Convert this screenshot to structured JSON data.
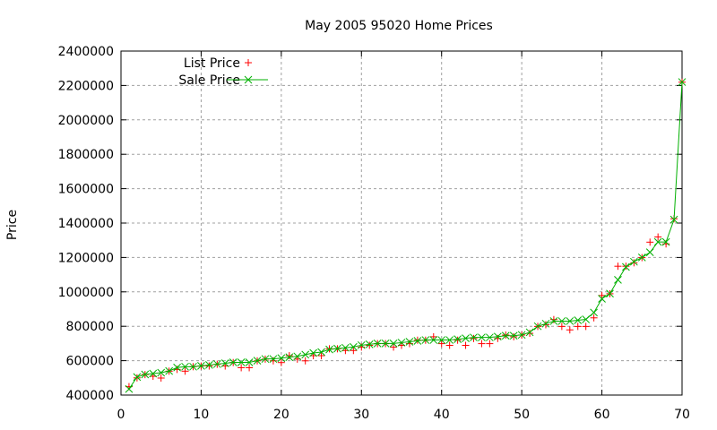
{
  "chart_data": {
    "type": "line",
    "title": "May 2005 95020 Home Prices",
    "xlabel": "",
    "ylabel": "Price",
    "xlim": [
      0,
      70
    ],
    "ylim": [
      400000,
      2400000
    ],
    "x_ticks": [
      0,
      10,
      20,
      30,
      40,
      50,
      60,
      70
    ],
    "y_ticks": [
      400000,
      600000,
      800000,
      1000000,
      1200000,
      1400000,
      1600000,
      1800000,
      2000000,
      2200000,
      2400000
    ],
    "grid": true,
    "legend_position": "top-left",
    "legend": [
      "List Price",
      "Sale Price"
    ],
    "x": [
      1,
      2,
      3,
      4,
      5,
      6,
      7,
      8,
      9,
      10,
      11,
      12,
      13,
      14,
      15,
      16,
      17,
      18,
      19,
      20,
      21,
      22,
      23,
      24,
      25,
      26,
      27,
      28,
      29,
      30,
      31,
      32,
      33,
      34,
      35,
      36,
      37,
      38,
      39,
      40,
      41,
      42,
      43,
      44,
      45,
      46,
      47,
      48,
      49,
      50,
      51,
      52,
      53,
      54,
      55,
      56,
      57,
      58,
      59,
      60,
      61,
      62,
      63,
      64,
      65,
      66,
      67,
      68,
      69,
      70
    ],
    "series": [
      {
        "name": "List Price",
        "style": "points",
        "marker": "+",
        "color": "#ff0000",
        "values": [
          449000,
          500000,
          519000,
          509000,
          499000,
          539000,
          549000,
          539000,
          565000,
          569000,
          569000,
          579000,
          569000,
          589000,
          559000,
          559000,
          599000,
          609000,
          599000,
          589000,
          629000,
          609000,
          599000,
          629000,
          629000,
          669000,
          669000,
          659000,
          659000,
          679000,
          689000,
          699000,
          699000,
          679000,
          689000,
          699000,
          719000,
          719000,
          739000,
          699000,
          689000,
          719000,
          689000,
          729000,
          699000,
          699000,
          729000,
          749000,
          739000,
          749000,
          759000,
          799000,
          809000,
          839000,
          799000,
          779000,
          799000,
          799000,
          849000,
          979000,
          989000,
          1149000,
          1149000,
          1169000,
          1199000,
          1289000,
          1319000,
          1279000,
          1425000,
          2219000
        ]
      },
      {
        "name": "Sale Price",
        "style": "linespoints",
        "marker": "x",
        "color": "#00b000",
        "values": [
          435000,
          505000,
          520000,
          525000,
          530000,
          540000,
          560000,
          565000,
          565000,
          570000,
          575000,
          580000,
          585000,
          590000,
          590000,
          590000,
          600000,
          610000,
          610000,
          615000,
          620000,
          625000,
          635000,
          645000,
          650000,
          665000,
          670000,
          675000,
          680000,
          690000,
          695000,
          700000,
          700000,
          700000,
          705000,
          710000,
          715000,
          720000,
          720000,
          720000,
          720000,
          725000,
          730000,
          735000,
          735000,
          735000,
          740000,
          745000,
          745000,
          750000,
          765000,
          800000,
          815000,
          830000,
          830000,
          830000,
          835000,
          840000,
          880000,
          960000,
          990000,
          1070000,
          1145000,
          1175000,
          1200000,
          1230000,
          1290000,
          1290000,
          1420000,
          2220000
        ]
      }
    ]
  }
}
